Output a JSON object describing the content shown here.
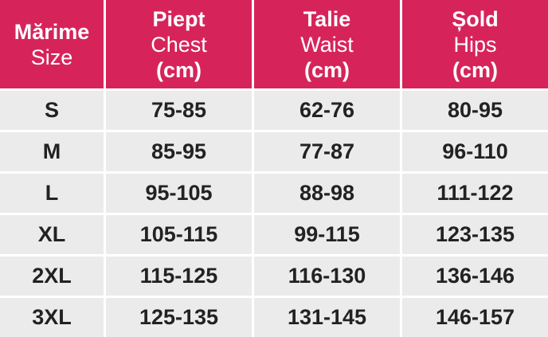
{
  "table": {
    "header": [
      {
        "lines": [
          "Mărime",
          "Size"
        ]
      },
      {
        "lines": [
          "Piept",
          "Chest",
          "(cm)"
        ]
      },
      {
        "lines": [
          "Talie",
          "Waist",
          "(cm)"
        ]
      },
      {
        "lines": [
          "Șold",
          "Hips",
          "(cm)"
        ]
      }
    ],
    "rows": [
      [
        "S",
        "75-85",
        "62-76",
        "80-95"
      ],
      [
        "M",
        "85-95",
        "77-87",
        "96-110"
      ],
      [
        "L",
        "95-105",
        "88-98",
        "111-122"
      ],
      [
        "XL",
        "105-115",
        "99-115",
        "123-135"
      ],
      [
        "2XL",
        "115-125",
        "116-130",
        "136-146"
      ],
      [
        "3XL",
        "125-135",
        "131-145",
        "146-157"
      ]
    ]
  }
}
